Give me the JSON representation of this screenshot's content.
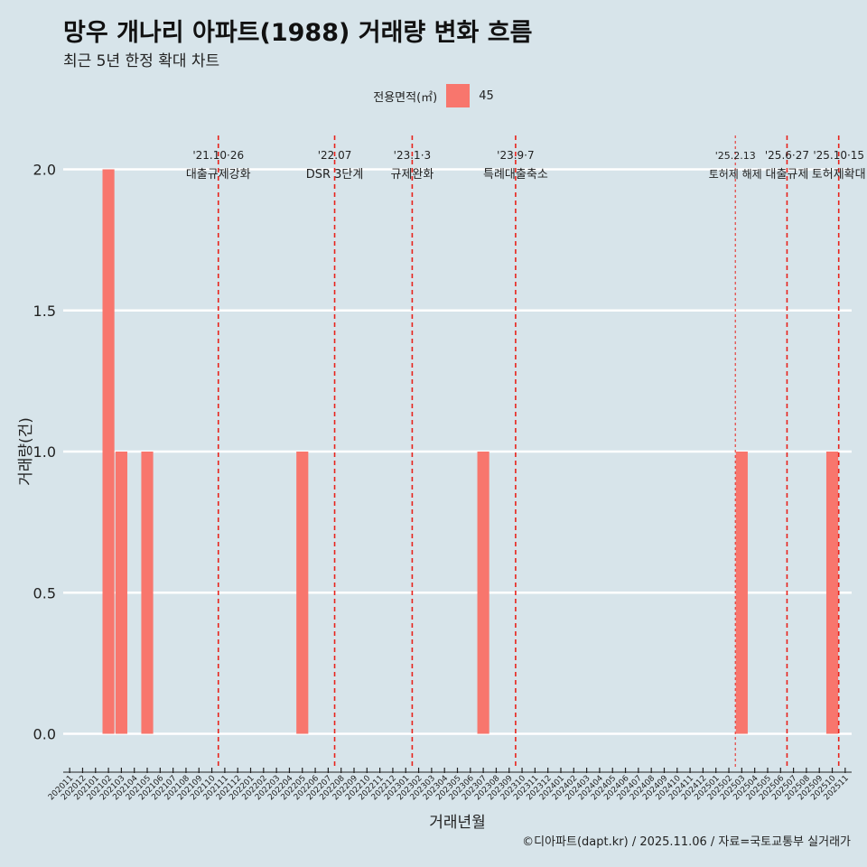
{
  "title": "망우 개나리 아파트(1988) 거래량 변화 흐름",
  "subtitle": "최근 5년 한정 확대 차트",
  "legend": {
    "title": "전용면적(㎡)",
    "items": [
      {
        "label": "45",
        "color": "#f8766d"
      }
    ]
  },
  "caption": "©디아파트(dapt.kr) / 2025.11.06 / 자료=국토교통부 실거래가",
  "chart_data": {
    "type": "bar",
    "xlabel": "거래년월",
    "ylabel": "거래량(건)",
    "ylim": [
      -0.12,
      2.12
    ],
    "yticks": [
      0.0,
      0.5,
      1.0,
      1.5,
      2.0
    ],
    "ytick_labels": [
      "0.0",
      "0.5",
      "1.0",
      "1.5",
      "2.0"
    ],
    "categories": [
      "202011",
      "202012",
      "202101",
      "202102",
      "202103",
      "202104",
      "202105",
      "202106",
      "202107",
      "202108",
      "202109",
      "202110",
      "202111",
      "202112",
      "202201",
      "202202",
      "202203",
      "202204",
      "202205",
      "202206",
      "202207",
      "202208",
      "202209",
      "202210",
      "202211",
      "202212",
      "202301",
      "202302",
      "202303",
      "202304",
      "202305",
      "202306",
      "202307",
      "202308",
      "202309",
      "202310",
      "202311",
      "202312",
      "202401",
      "202402",
      "202403",
      "202404",
      "202405",
      "202406",
      "202407",
      "202408",
      "202409",
      "202410",
      "202411",
      "202412",
      "202501",
      "202502",
      "202503",
      "202504",
      "202505",
      "202506",
      "202507",
      "202508",
      "202509",
      "202510",
      "202511"
    ],
    "series": [
      {
        "name": "45",
        "color": "#f8766d",
        "values": [
          0,
          0,
          0,
          2,
          1,
          0,
          1,
          0,
          0,
          0,
          0,
          0,
          0,
          0,
          0,
          0,
          0,
          0,
          1,
          0,
          0,
          0,
          0,
          0,
          0,
          0,
          0,
          0,
          0,
          0,
          0,
          0,
          1,
          0,
          0,
          0,
          0,
          0,
          0,
          0,
          0,
          0,
          0,
          0,
          0,
          0,
          0,
          0,
          0,
          0,
          0,
          0,
          1,
          0,
          0,
          0,
          0,
          0,
          0,
          1,
          0
        ]
      }
    ],
    "events": [
      {
        "x": 11.5,
        "date": "'21.10·26",
        "label": "대출규제강화",
        "style": "dashed"
      },
      {
        "x": 20.5,
        "date": "'22.07",
        "label": "DSR 3단계",
        "style": "dashed"
      },
      {
        "x": 26.5,
        "date": "'23.1·3",
        "label": "규제완화",
        "style": "dashed"
      },
      {
        "x": 34.5,
        "date": "'23.9·7",
        "label": "특례대출축소",
        "style": "dashed"
      },
      {
        "x": 51.5,
        "date": "'25.2.13",
        "label": "토허제 해제",
        "style": "dotted"
      },
      {
        "x": 55.5,
        "date": "'25.6·27",
        "label": "대출규제",
        "style": "dashed"
      },
      {
        "x": 59.5,
        "date": "'25.10·15",
        "label": "토허제확대",
        "style": "dashed"
      }
    ]
  }
}
